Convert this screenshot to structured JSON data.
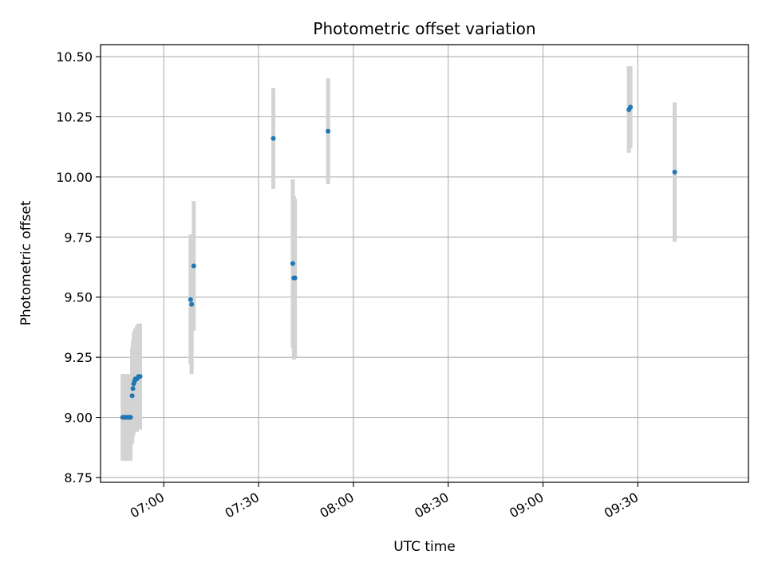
{
  "chart_data": {
    "type": "scatter",
    "title": "Photometric offset variation",
    "xlabel": "UTC time",
    "ylabel": "Photometric offset",
    "x_axis_type": "time",
    "xlim": [
      "06:40",
      "10:05"
    ],
    "ylim": [
      8.73,
      10.55
    ],
    "x_ticks": [
      "07:00",
      "07:30",
      "08:00",
      "08:30",
      "09:00",
      "09:30"
    ],
    "y_ticks": [
      "8.75",
      "9.00",
      "9.25",
      "9.50",
      "9.75",
      "10.00",
      "10.25",
      "10.50"
    ],
    "grid": true,
    "x_tick_rotation": 30,
    "marker_color": "#1f77b4",
    "errorbar_color": "#d3d3d3",
    "points": [
      {
        "x": "06:47:00",
        "y": 9.0,
        "err": 0.18
      },
      {
        "x": "06:47:30",
        "y": 9.0,
        "err": 0.18
      },
      {
        "x": "06:48:00",
        "y": 9.0,
        "err": 0.18
      },
      {
        "x": "06:48:30",
        "y": 9.0,
        "err": 0.18
      },
      {
        "x": "06:49:00",
        "y": 9.0,
        "err": 0.18
      },
      {
        "x": "06:49:30",
        "y": 9.0,
        "err": 0.18
      },
      {
        "x": "06:50:00",
        "y": 9.09,
        "err": 0.2
      },
      {
        "x": "06:50:15",
        "y": 9.12,
        "err": 0.2
      },
      {
        "x": "06:50:30",
        "y": 9.14,
        "err": 0.21
      },
      {
        "x": "06:50:45",
        "y": 9.15,
        "err": 0.21
      },
      {
        "x": "06:51:00",
        "y": 9.16,
        "err": 0.21
      },
      {
        "x": "06:51:30",
        "y": 9.16,
        "err": 0.22
      },
      {
        "x": "06:52:00",
        "y": 9.17,
        "err": 0.22
      },
      {
        "x": "06:52:30",
        "y": 9.17,
        "err": 0.22
      },
      {
        "x": "07:08:30",
        "y": 9.49,
        "err": 0.27
      },
      {
        "x": "07:08:50",
        "y": 9.47,
        "err": 0.29
      },
      {
        "x": "07:09:30",
        "y": 9.63,
        "err": 0.27
      },
      {
        "x": "07:34:40",
        "y": 10.16,
        "err": 0.21
      },
      {
        "x": "07:40:50",
        "y": 9.64,
        "err": 0.35
      },
      {
        "x": "07:41:10",
        "y": 9.58,
        "err": 0.34
      },
      {
        "x": "07:41:30",
        "y": 9.58,
        "err": 0.33
      },
      {
        "x": "07:52:00",
        "y": 10.19,
        "err": 0.22
      },
      {
        "x": "09:27:10",
        "y": 10.28,
        "err": 0.18
      },
      {
        "x": "09:27:40",
        "y": 10.29,
        "err": 0.17
      },
      {
        "x": "09:41:40",
        "y": 10.02,
        "err": 0.29
      }
    ]
  }
}
